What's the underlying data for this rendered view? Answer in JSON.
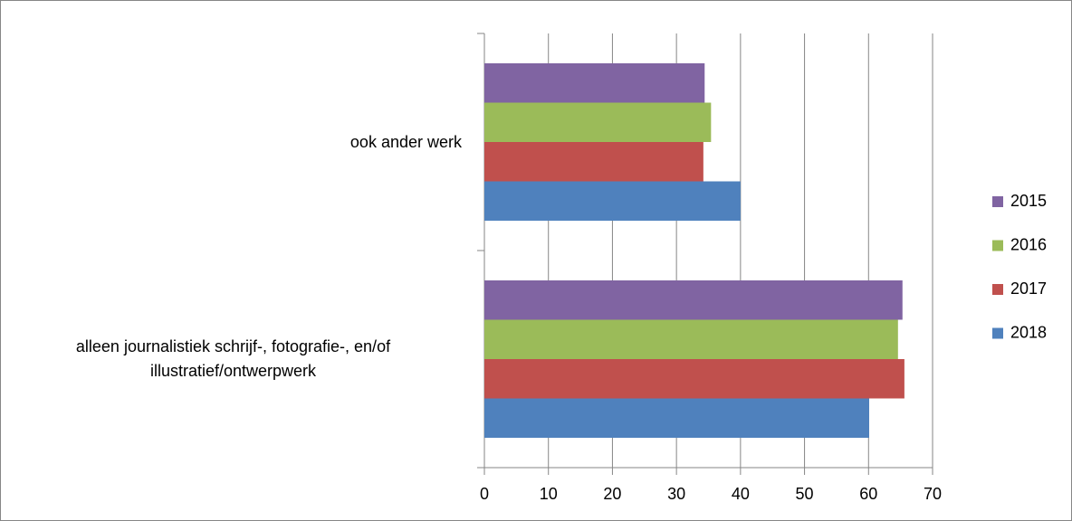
{
  "chart_data": {
    "type": "bar",
    "orientation": "horizontal",
    "categories": [
      "alleen journalistiek schrijf-, fotografie-, en/of illustratief/ontwerpwerk",
      "ook ander werk"
    ],
    "series": [
      {
        "name": "2015",
        "color": "#8064a2",
        "values": [
          65.3,
          34.4
        ]
      },
      {
        "name": "2016",
        "color": "#9bbb59",
        "values": [
          64.6,
          35.4
        ]
      },
      {
        "name": "2017",
        "color": "#c0504d",
        "values": [
          65.6,
          34.2
        ]
      },
      {
        "name": "2018",
        "color": "#4f81bd",
        "values": [
          60.1,
          40.0
        ]
      }
    ],
    "xlim": [
      0,
      70
    ],
    "xticks": [
      0,
      10,
      20,
      30,
      40,
      50,
      60,
      70
    ],
    "grid": true,
    "legend": "right"
  }
}
